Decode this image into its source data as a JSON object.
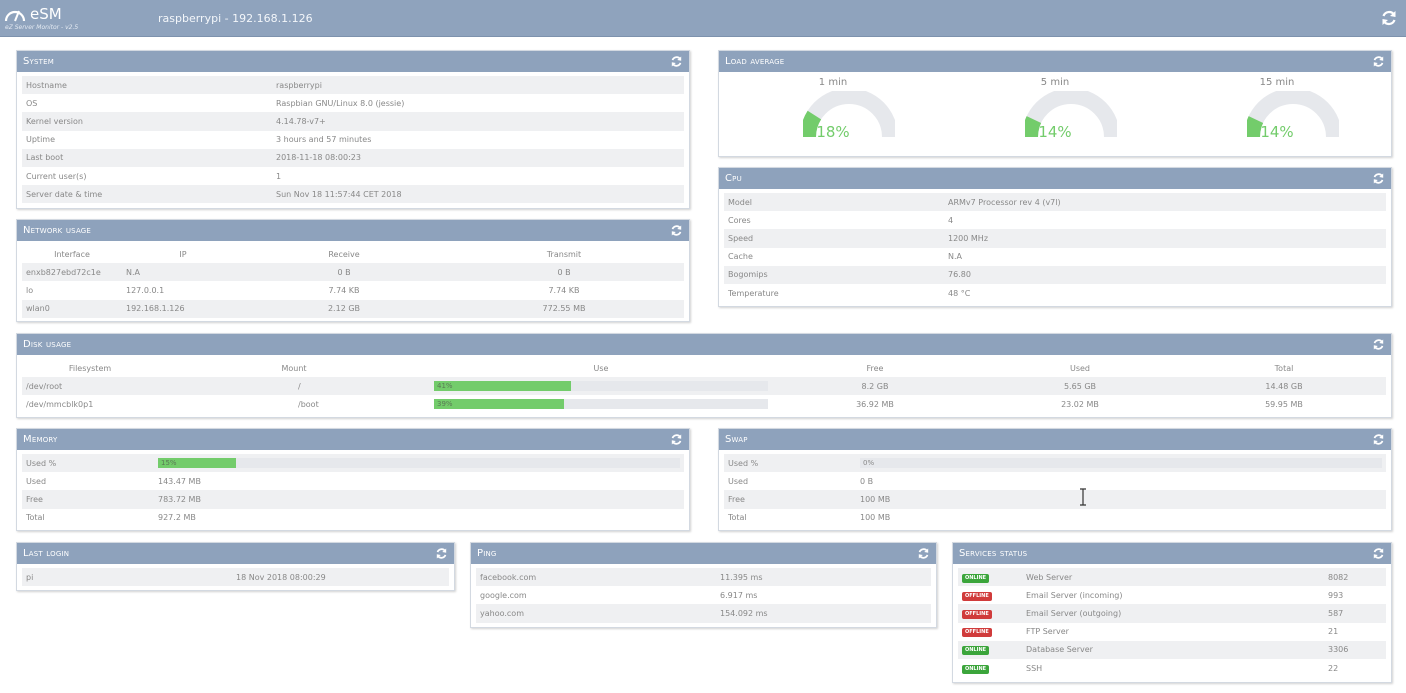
{
  "header": {
    "app_name": "eSM",
    "app_subtitle": "eZ Server Monitor - v2.5",
    "host_title": "raspberrypi - 192.168.1.126"
  },
  "system": {
    "title": "System",
    "rows": [
      {
        "label": "Hostname",
        "value": "raspberrypi"
      },
      {
        "label": "OS",
        "value": "Raspbian GNU/Linux 8.0 (jessie)"
      },
      {
        "label": "Kernel version",
        "value": "4.14.78-v7+"
      },
      {
        "label": "Uptime",
        "value": "3 hours and 57 minutes"
      },
      {
        "label": "Last boot",
        "value": "2018-11-18 08:00:23"
      },
      {
        "label": "Current user(s)",
        "value": "1"
      },
      {
        "label": "Server date & time",
        "value": "Sun Nov 18 11:57:44 CET 2018"
      }
    ]
  },
  "load": {
    "title": "Load average",
    "items": [
      {
        "label": "1 min",
        "value": "18%",
        "fraction": 0.18
      },
      {
        "label": "5 min",
        "value": "14%",
        "fraction": 0.14
      },
      {
        "label": "15 min",
        "value": "14%",
        "fraction": 0.14
      }
    ]
  },
  "cpu": {
    "title": "Cpu",
    "rows": [
      {
        "label": "Model",
        "value": "ARMv7 Processor rev 4 (v7l)"
      },
      {
        "label": "Cores",
        "value": "4"
      },
      {
        "label": "Speed",
        "value": "1200 MHz"
      },
      {
        "label": "Cache",
        "value": "N.A"
      },
      {
        "label": "Bogomips",
        "value": "76.80"
      },
      {
        "label": "Temperature",
        "value": "48 °C"
      }
    ]
  },
  "network": {
    "title": "Network usage",
    "headers": [
      "Interface",
      "IP",
      "Receive",
      "Transmit"
    ],
    "rows": [
      [
        "enxb827ebd72c1e",
        "N.A",
        "0 B",
        "0 B"
      ],
      [
        "lo",
        "127.0.0.1",
        "7.74 KB",
        "7.74 KB"
      ],
      [
        "wlan0",
        "192.168.1.126",
        "2.12 GB",
        "772.55 MB"
      ]
    ]
  },
  "disk": {
    "title": "Disk usage",
    "headers": [
      "Filesystem",
      "Mount",
      "Use",
      "Free",
      "Used",
      "Total"
    ],
    "rows": [
      {
        "fs": "/dev/root",
        "mount": "/",
        "use": "41%",
        "fraction": 0.41,
        "free": "8.2 GB",
        "used": "5.65 GB",
        "total": "14.48 GB"
      },
      {
        "fs": "/dev/mmcblk0p1",
        "mount": "/boot",
        "use": "39%",
        "fraction": 0.39,
        "free": "36.92 MB",
        "used": "23.02 MB",
        "total": "59.95 MB"
      }
    ]
  },
  "memory": {
    "title": "Memory",
    "used_pct_label": "Used %",
    "used_pct": "15%",
    "used_fraction": 0.15,
    "rows": [
      {
        "label": "Used",
        "value": "143.47 MB"
      },
      {
        "label": "Free",
        "value": "783.72 MB"
      },
      {
        "label": "Total",
        "value": "927.2 MB"
      }
    ]
  },
  "swap": {
    "title": "Swap",
    "used_pct_label": "Used %",
    "used_pct": "0%",
    "used_fraction": 0,
    "rows": [
      {
        "label": "Used",
        "value": "0 B"
      },
      {
        "label": "Free",
        "value": "100 MB"
      },
      {
        "label": "Total",
        "value": "100 MB"
      }
    ]
  },
  "last_login": {
    "title": "Last login",
    "rows": [
      {
        "user": "pi",
        "date": "18 Nov 2018 08:00:29"
      }
    ]
  },
  "ping": {
    "title": "Ping",
    "rows": [
      {
        "host": "facebook.com",
        "time": "11.395 ms"
      },
      {
        "host": "google.com",
        "time": "6.917 ms"
      },
      {
        "host": "yahoo.com",
        "time": "154.092 ms"
      }
    ]
  },
  "services": {
    "title": "Services status",
    "rows": [
      {
        "status": "ONLINE",
        "state": "online",
        "name": "Web Server",
        "port": "8082"
      },
      {
        "status": "OFFLINE",
        "state": "offline",
        "name": "Email Server (incoming)",
        "port": "993"
      },
      {
        "status": "OFFLINE",
        "state": "offline",
        "name": "Email Server (outgoing)",
        "port": "587"
      },
      {
        "status": "OFFLINE",
        "state": "offline",
        "name": "FTP Server",
        "port": "21"
      },
      {
        "status": "ONLINE",
        "state": "online",
        "name": "Database Server",
        "port": "3306"
      },
      {
        "status": "ONLINE",
        "state": "online",
        "name": "SSH",
        "port": "22"
      }
    ]
  },
  "colors": {
    "header_bg": "#8fa3bd",
    "panel_head_bg": "#8ea2bc",
    "bar_fill": "#73cc6b",
    "online": "#3ba53b",
    "offline": "#d03b3b"
  }
}
